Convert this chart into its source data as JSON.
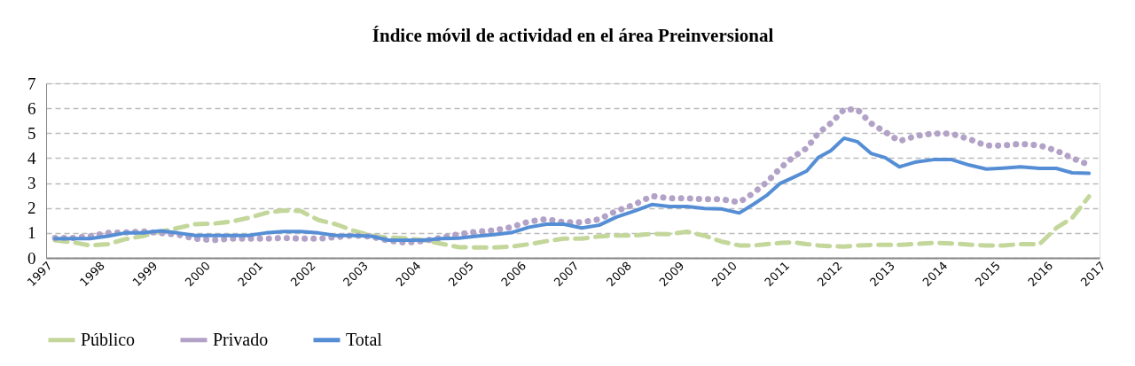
{
  "chart_data": {
    "type": "line",
    "title": "Índice móvil de actividad  en el área Preinversional",
    "x": [
      1997.17,
      1997.5,
      1997.83,
      1998.17,
      1998.5,
      1998.83,
      1999.17,
      1999.5,
      1999.83,
      2000.17,
      2000.5,
      2000.83,
      2001.17,
      2001.5,
      2001.83,
      2002.17,
      2002.5,
      2002.83,
      2003.17,
      2003.5,
      2003.83,
      2004.17,
      2004.5,
      2004.83,
      2005.17,
      2005.5,
      2005.83,
      2006.17,
      2006.5,
      2006.83,
      2007.17,
      2007.5,
      2007.83,
      2008.17,
      2008.5,
      2008.83,
      2009.17,
      2009.5,
      2009.83,
      2010.16,
      2010.43,
      2010.69,
      2010.94,
      2011.19,
      2011.44,
      2011.66,
      2011.9,
      2012.15,
      2012.4,
      2012.66,
      2012.93,
      2013.2,
      2013.52,
      2013.85,
      2014.19,
      2014.53,
      2014.85,
      2015.17,
      2015.5,
      2015.86,
      2016.18,
      2016.48,
      2016.8
    ],
    "series": [
      {
        "name": "Público",
        "color": "#c4d79b",
        "line_style": "dashed",
        "values": [
          0.7,
          0.63,
          0.5,
          0.55,
          0.75,
          0.87,
          1.05,
          1.2,
          1.35,
          1.37,
          1.45,
          1.6,
          1.8,
          1.9,
          1.88,
          1.52,
          1.35,
          1.1,
          0.9,
          0.81,
          0.79,
          0.71,
          0.57,
          0.43,
          0.42,
          0.42,
          0.45,
          0.55,
          0.67,
          0.77,
          0.77,
          0.86,
          0.9,
          0.9,
          0.96,
          0.95,
          1.05,
          0.89,
          0.65,
          0.5,
          0.5,
          0.55,
          0.6,
          0.62,
          0.55,
          0.5,
          0.47,
          0.45,
          0.5,
          0.52,
          0.52,
          0.52,
          0.56,
          0.6,
          0.58,
          0.53,
          0.5,
          0.5,
          0.55,
          0.55,
          1.2,
          1.6,
          2.46
        ]
      },
      {
        "name": "Privado",
        "color": "#b3a2c7",
        "line_style": "dotted",
        "values": [
          0.8,
          0.8,
          0.87,
          1.0,
          1.02,
          1.06,
          1.0,
          0.93,
          0.77,
          0.71,
          0.77,
          0.77,
          0.77,
          0.8,
          0.77,
          0.77,
          0.83,
          0.9,
          0.85,
          0.69,
          0.61,
          0.68,
          0.81,
          0.95,
          1.05,
          1.1,
          1.23,
          1.46,
          1.55,
          1.43,
          1.43,
          1.55,
          1.88,
          2.14,
          2.48,
          2.39,
          2.39,
          2.35,
          2.35,
          2.23,
          2.6,
          3.05,
          3.6,
          4.05,
          4.4,
          5.0,
          5.4,
          5.95,
          5.95,
          5.4,
          5.05,
          4.68,
          4.89,
          4.99,
          4.98,
          4.76,
          4.5,
          4.51,
          4.57,
          4.51,
          4.3,
          4.0,
          3.73
        ]
      },
      {
        "name": "Total",
        "color": "#558ed5",
        "line_style": "solid",
        "values": [
          0.77,
          0.77,
          0.77,
          0.87,
          1.0,
          1.0,
          1.08,
          1.0,
          0.9,
          0.9,
          0.9,
          0.9,
          1.0,
          1.06,
          1.06,
          1.0,
          0.9,
          0.9,
          0.87,
          0.71,
          0.71,
          0.71,
          0.77,
          0.79,
          0.87,
          0.93,
          1.01,
          1.23,
          1.35,
          1.35,
          1.2,
          1.31,
          1.64,
          1.88,
          2.14,
          2.06,
          2.06,
          1.98,
          1.96,
          1.8,
          2.15,
          2.52,
          2.99,
          3.23,
          3.48,
          4.02,
          4.3,
          4.8,
          4.66,
          4.19,
          4.02,
          3.65,
          3.85,
          3.94,
          3.94,
          3.72,
          3.56,
          3.6,
          3.65,
          3.59,
          3.59,
          3.41,
          3.39
        ]
      }
    ],
    "xlim": [
      1997,
      2017
    ],
    "xticks": [
      1997,
      1998,
      1999,
      2000,
      2001,
      2002,
      2003,
      2004,
      2005,
      2006,
      2007,
      2008,
      2009,
      2010,
      2011,
      2012,
      2013,
      2014,
      2015,
      2016,
      2017
    ],
    "ylim": [
      0,
      7
    ],
    "yticks": [
      0,
      1,
      2,
      3,
      4,
      5,
      6,
      7
    ],
    "grid": "y",
    "legend": "bottom",
    "marker": "none"
  }
}
